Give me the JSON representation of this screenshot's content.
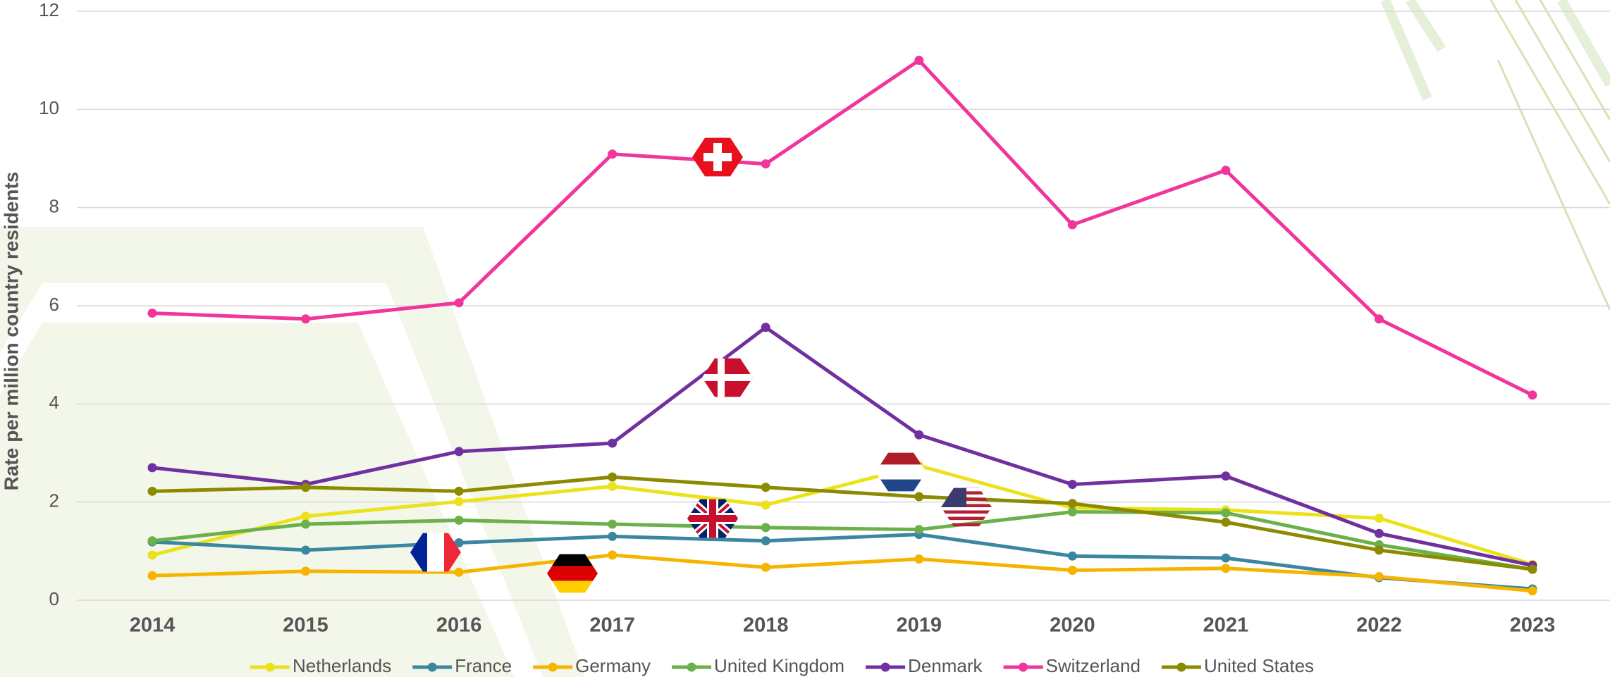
{
  "chart_data": {
    "type": "line",
    "y_label": "Rate per million country residents",
    "categories": [
      "2014",
      "2015",
      "2016",
      "2017",
      "2018",
      "2019",
      "2020",
      "2021",
      "2022",
      "2023"
    ],
    "series": [
      {
        "name": "Netherlands",
        "color": "#ece21c",
        "values": [
          0.92,
          1.71,
          2.01,
          2.32,
          1.94,
          2.74,
          1.88,
          1.84,
          1.67,
          0.73
        ]
      },
      {
        "name": "France",
        "color": "#3b86a0",
        "values": [
          1.19,
          1.02,
          1.17,
          1.3,
          1.21,
          1.34,
          0.9,
          0.86,
          0.46,
          0.23
        ]
      },
      {
        "name": "Germany",
        "color": "#f6b400",
        "values": [
          0.5,
          0.59,
          0.57,
          0.92,
          0.67,
          0.84,
          0.61,
          0.65,
          0.48,
          0.19
        ]
      },
      {
        "name": "United Kingdom",
        "color": "#6cb04c",
        "values": [
          1.21,
          1.55,
          1.63,
          1.55,
          1.48,
          1.44,
          1.8,
          1.78,
          1.13,
          0.63
        ]
      },
      {
        "name": "Denmark",
        "color": "#7030a0",
        "values": [
          2.7,
          2.36,
          3.03,
          3.2,
          5.56,
          3.37,
          2.36,
          2.53,
          1.36,
          0.71
        ]
      },
      {
        "name": "Switzerland",
        "color": "#f0359b",
        "values": [
          5.85,
          5.73,
          6.06,
          9.09,
          8.89,
          11.0,
          7.65,
          8.76,
          5.73,
          4.18
        ]
      },
      {
        "name": "United States",
        "color": "#8c8a00",
        "values": [
          2.22,
          2.3,
          2.22,
          2.51,
          2.3,
          2.11,
          1.97,
          1.59,
          1.02,
          0.63
        ]
      }
    ],
    "ylim": [
      0,
      12
    ],
    "yticks": [
      0,
      2,
      4,
      6,
      8,
      10,
      12
    ],
    "grid": true,
    "legend_position": "bottom"
  }
}
